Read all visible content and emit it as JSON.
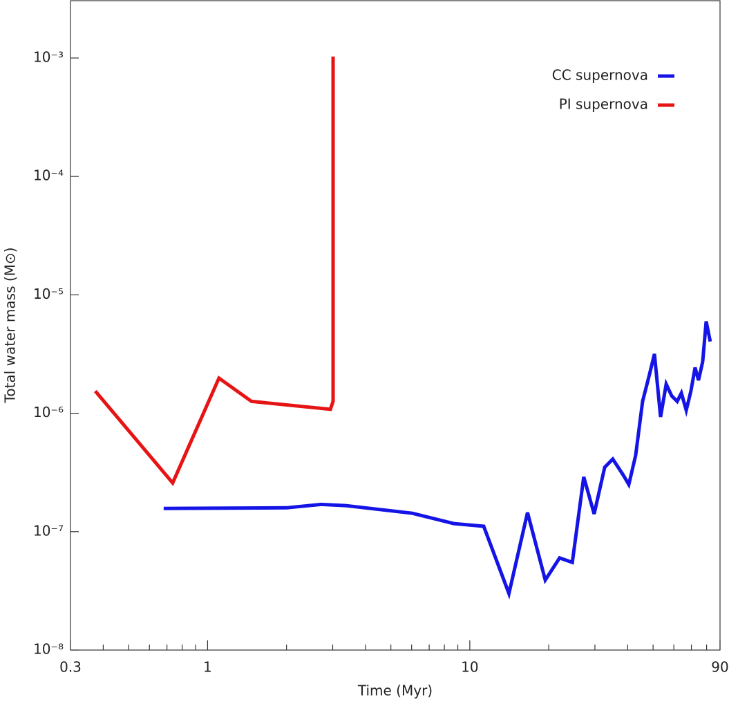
{
  "chart_data": {
    "type": "line",
    "xlabel": "Time (Myr)",
    "ylabel": "Total water mass (M⊙)",
    "xscale": "log",
    "yscale": "log",
    "xlim": [
      0.3,
      90
    ],
    "ylim": [
      1e-08,
      0.00305
    ],
    "xticks": [
      0.3,
      1,
      10,
      90
    ],
    "xminorticks": [
      0.4,
      0.5,
      0.6,
      0.7,
      0.8,
      0.9,
      2,
      3,
      4,
      5,
      6,
      7,
      8,
      9,
      20,
      30,
      40,
      50,
      60,
      70,
      80
    ],
    "yticks": [
      {
        "value": 1e-08,
        "label": "10⁻⁸"
      },
      {
        "value": 1e-07,
        "label": "10⁻⁷"
      },
      {
        "value": 1e-06,
        "label": "10⁻⁶"
      },
      {
        "value": 1e-05,
        "label": "10⁻⁵"
      },
      {
        "value": 0.0001,
        "label": "10⁻⁴"
      },
      {
        "value": 0.001,
        "label": "10⁻³"
      }
    ],
    "legend": "top-right",
    "series": [
      {
        "name": "CC supernova",
        "color": "#1414e6",
        "x": [
          0.68,
          2.0,
          2.71,
          3.36,
          6.04,
          8.69,
          11.3,
          14.1,
          16.6,
          19.4,
          22.0,
          24.6,
          27.2,
          29.8,
          32.7,
          35.1,
          38.5,
          40.4,
          42.9,
          45.6,
          48.5,
          50.6,
          53.4,
          56.1,
          58.9,
          61.8,
          64.1,
          66.9,
          69.7,
          72.3,
          74.5,
          77.3,
          79.7,
          82.6
        ],
        "values": [
          1.57e-07,
          1.59e-07,
          1.7e-07,
          1.66e-07,
          1.43e-07,
          1.17e-07,
          1.11e-07,
          3e-08,
          1.45e-07,
          3.9e-08,
          6e-08,
          5.5e-08,
          2.9e-07,
          1.41e-07,
          3.5e-07,
          4.1e-07,
          3e-07,
          2.5e-07,
          4.4e-07,
          1.26e-06,
          2.15e-06,
          3.17e-06,
          9.3e-07,
          1.76e-06,
          1.4e-06,
          1.26e-06,
          1.48e-06,
          1.06e-06,
          1.54e-06,
          2.43e-06,
          1.9e-06,
          2.73e-06,
          5.97e-06,
          4.03e-06
        ]
      },
      {
        "name": "PI supernova",
        "color": "#e61414",
        "x": [
          0.373,
          0.736,
          1.105,
          1.47,
          2.94,
          3.01,
          3.01
        ],
        "values": [
          1.54e-06,
          2.58e-07,
          1.98e-06,
          1.26e-06,
          1.08e-06,
          1.26e-06,
          0.00103
        ]
      }
    ]
  }
}
